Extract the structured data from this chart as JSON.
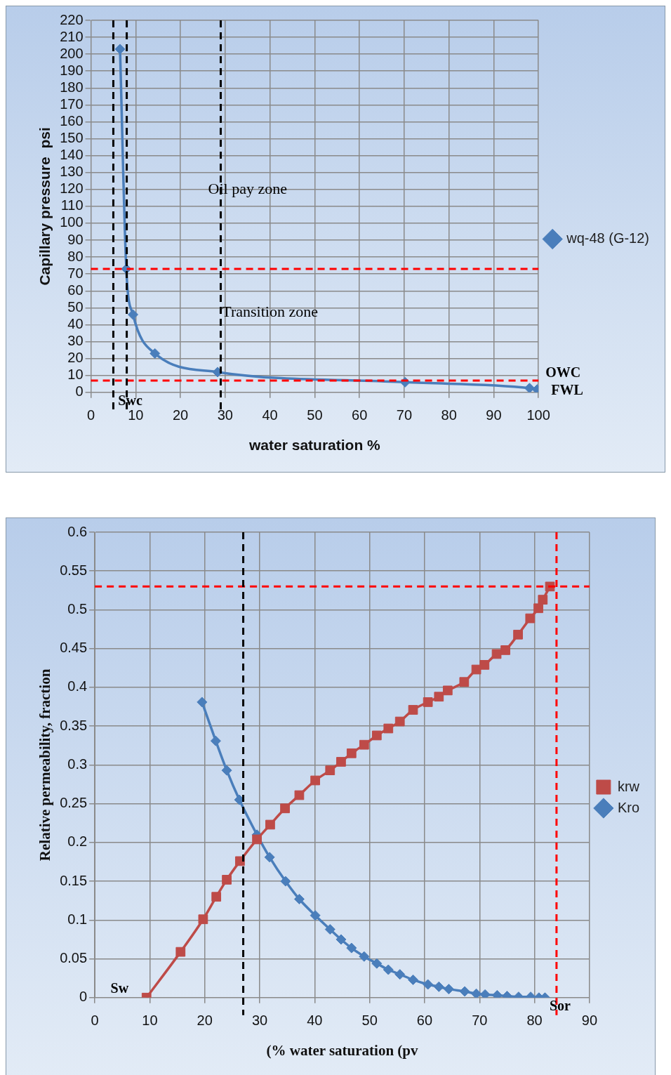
{
  "chart_data": [
    {
      "type": "line",
      "xlabel": "water saturation %",
      "ylabel": "Capillary pressure  psi",
      "xlim": [
        0,
        100
      ],
      "xticks": [
        0,
        10,
        20,
        30,
        40,
        50,
        60,
        70,
        80,
        90,
        100
      ],
      "ylim": [
        0,
        220
      ],
      "yticks": [
        0,
        10,
        20,
        30,
        40,
        50,
        60,
        70,
        80,
        90,
        100,
        110,
        120,
        130,
        140,
        150,
        160,
        170,
        180,
        190,
        200,
        210,
        220
      ],
      "grid": true,
      "legend": "right",
      "marker": "diamond",
      "series": [
        {
          "name": "wq-48 (G-12)",
          "color": "#4a7ebb",
          "x": [
            6.5,
            7.9,
            9.4,
            14.3,
            28.3,
            70.2,
            98,
            99.7
          ],
          "values": [
            203,
            73,
            46,
            23,
            12,
            6,
            2.5,
            1.7
          ]
        }
      ],
      "ref_lines": [
        {
          "axis": "y",
          "value": 73,
          "color": "#ff0000",
          "line_style": "dashed",
          "label": null
        },
        {
          "axis": "y",
          "value": 7,
          "color": "#ff0000",
          "line_style": "dashed",
          "label": "OWC"
        },
        {
          "axis": "x",
          "value": 5,
          "color": "#000000",
          "line_style": "dashed",
          "label": null
        },
        {
          "axis": "x",
          "value": 8,
          "color": "#000000",
          "line_style": "dashed",
          "label": "Swc"
        },
        {
          "axis": "x",
          "value": 29,
          "color": "#000000",
          "line_style": "dashed",
          "label": null
        }
      ],
      "annotations": [
        "Oil pay zone",
        "Transition zone",
        {
          "text": "FWL",
          "x": 100,
          "y": 1
        }
      ]
    },
    {
      "type": "line",
      "xlabel": "(% water saturation (pv",
      "ylabel": "Relative permeability, fraction",
      "xlim": [
        0,
        90
      ],
      "xticks": [
        0,
        10,
        20,
        30,
        40,
        50,
        60,
        70,
        80,
        90
      ],
      "ylim": [
        0,
        0.6
      ],
      "yticks": [
        0,
        0.05,
        0.1,
        0.15,
        0.2,
        0.25,
        0.3,
        0.35,
        0.4,
        0.45,
        0.5,
        0.55,
        0.6
      ],
      "grid": true,
      "legend": "right",
      "series": [
        {
          "name": "Kro",
          "color": "#4a7ebb",
          "marker": "diamond",
          "x": [
            19.5,
            22.0,
            24.0,
            26.3,
            29.5,
            31.8,
            34.7,
            37.2,
            40.1,
            42.8,
            44.8,
            46.7,
            49.0,
            51.3,
            53.4,
            55.5,
            57.9,
            60.6,
            62.6,
            64.4,
            67.3,
            69.4,
            71.0,
            73.2,
            75.0,
            77.1,
            79.3,
            80.8,
            81.9
          ],
          "values": [
            0.381,
            0.331,
            0.293,
            0.255,
            0.21,
            0.181,
            0.15,
            0.127,
            0.106,
            0.088,
            0.075,
            0.064,
            0.053,
            0.044,
            0.036,
            0.03,
            0.023,
            0.017,
            0.014,
            0.011,
            0.008,
            0.005,
            0.004,
            0.003,
            0.002,
            0.001,
            0.001,
            0,
            0
          ]
        },
        {
          "name": "krw",
          "color": "#be4b48",
          "marker": "square",
          "x": [
            9.4,
            15.6,
            19.7,
            22.1,
            24.0,
            26.4,
            29.5,
            31.9,
            34.6,
            37.2,
            40.1,
            42.8,
            44.8,
            46.7,
            49.0,
            51.3,
            53.4,
            55.5,
            57.9,
            60.6,
            62.6,
            64.2,
            67.2,
            69.4,
            70.9,
            73.1,
            74.7,
            77.0,
            79.2,
            80.7,
            81.5,
            82.8
          ],
          "values": [
            0,
            0.059,
            0.101,
            0.13,
            0.152,
            0.176,
            0.204,
            0.223,
            0.244,
            0.261,
            0.28,
            0.293,
            0.304,
            0.315,
            0.326,
            0.338,
            0.347,
            0.356,
            0.371,
            0.381,
            0.388,
            0.396,
            0.407,
            0.423,
            0.429,
            0.443,
            0.448,
            0.468,
            0.489,
            0.502,
            0.513,
            0.53
          ]
        }
      ],
      "ref_lines": [
        {
          "axis": "y",
          "value": 0.53,
          "color": "#ff0000",
          "line_style": "dashed",
          "label": null
        },
        {
          "axis": "x",
          "value": 84,
          "color": "#ff0000",
          "line_style": "dashed",
          "label": "Sor"
        },
        {
          "axis": "x",
          "value": 27,
          "color": "#000000",
          "line_style": "dashed",
          "label": null
        }
      ],
      "annotations": [
        "Sw"
      ]
    }
  ]
}
